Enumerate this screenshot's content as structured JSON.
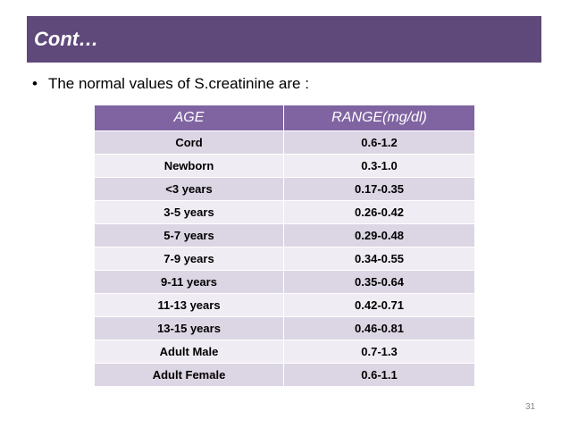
{
  "slide": {
    "title": "Cont…",
    "bullet_symbol": "•",
    "bullet_text": "The normal values of S.creatinine are :",
    "slide_number": "31"
  },
  "table": {
    "headers": [
      "AGE",
      "RANGE(mg/dl)"
    ],
    "rows": [
      [
        "Cord",
        "0.6-1.2"
      ],
      [
        "Newborn",
        "0.3-1.0"
      ],
      [
        "<3 years",
        "0.17-0.35"
      ],
      [
        "3-5 years",
        "0.26-0.42"
      ],
      [
        "5-7 years",
        "0.29-0.48"
      ],
      [
        "7-9 years",
        "0.34-0.55"
      ],
      [
        "9-11 years",
        "0.35-0.64"
      ],
      [
        "11-13 years",
        "0.42-0.71"
      ],
      [
        "13-15 years",
        "0.46-0.81"
      ],
      [
        "Adult Male",
        "0.7-1.3"
      ],
      [
        "Adult Female",
        "0.6-1.1"
      ]
    ]
  },
  "colors": {
    "title_bar": "#5f497a",
    "header_bg": "#8064a2",
    "row_odd": "#dcd6e4",
    "row_even": "#efecf3"
  }
}
